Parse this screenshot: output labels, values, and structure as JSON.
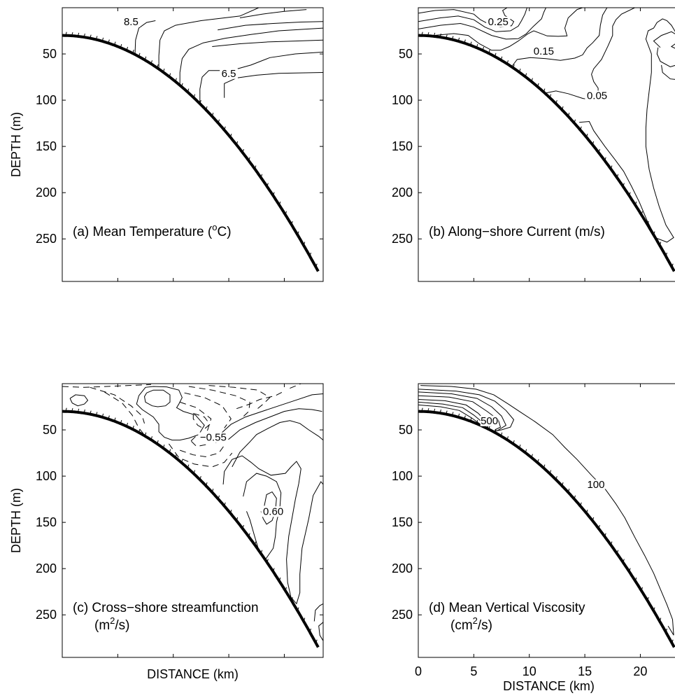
{
  "chart_data": [
    {
      "id": "a",
      "type": "contour",
      "panel_label": "(a) Mean Temperature (",
      "panel_label_sup": "o",
      "panel_label_tail": "C)",
      "ylabel": "DEPTH (m)",
      "xlabel": "",
      "yticks": [
        50,
        100,
        150,
        200,
        250
      ],
      "xticks": [],
      "xlim": [
        0,
        23.5
      ],
      "ylim": [
        296,
        0
      ],
      "contour_labels": [
        {
          "text": "8.5",
          "x": 6.2,
          "y": 18
        },
        {
          "text": "6.5",
          "x": 15.0,
          "y": 74
        }
      ]
    },
    {
      "id": "b",
      "type": "contour",
      "panel_label": "(b) Along−shore Current (m/s)",
      "ylabel": "",
      "xlabel": "",
      "yticks": [
        50,
        100,
        150,
        200,
        250
      ],
      "xticks": [],
      "xlim": [
        0,
        23.5
      ],
      "ylim": [
        296,
        0
      ],
      "contour_labels": [
        {
          "text": "0.25",
          "x": 7.2,
          "y": 18
        },
        {
          "text": "0.15",
          "x": 11.3,
          "y": 50
        },
        {
          "text": "0.05",
          "x": 16.1,
          "y": 98
        }
      ]
    },
    {
      "id": "c",
      "type": "contour",
      "panel_label": "(c) Cross−shore streamfunction",
      "panel_label_line2": "(m",
      "panel_label_line2_sup": "2",
      "panel_label_line2_tail": "/s)",
      "ylabel": "DEPTH (m)",
      "xlabel": "DISTANCE (km)",
      "yticks": [
        50,
        100,
        150,
        200,
        250
      ],
      "xticks": [],
      "xlim": [
        0,
        23.5
      ],
      "ylim": [
        296,
        0
      ],
      "contour_labels": [
        {
          "text": "−0.55",
          "x": 13.6,
          "y": 61
        },
        {
          "text": "0.60",
          "x": 19.0,
          "y": 141
        }
      ]
    },
    {
      "id": "d",
      "type": "contour",
      "panel_label": "(d) Mean Vertical Viscosity",
      "panel_label_line2": "(cm",
      "panel_label_line2_sup": "2",
      "panel_label_line2_tail": "/s)",
      "ylabel": "",
      "xlabel": "DISTANCE (km)",
      "yticks": [
        50,
        100,
        150,
        200,
        250
      ],
      "xticks": [
        0,
        5,
        10,
        15,
        20
      ],
      "xlim": [
        0,
        23.5
      ],
      "ylim": [
        296,
        0
      ],
      "contour_labels": [
        {
          "text": "500",
          "x": 6.4,
          "y": 43
        },
        {
          "text": "100",
          "x": 16.0,
          "y": 112
        }
      ]
    }
  ]
}
